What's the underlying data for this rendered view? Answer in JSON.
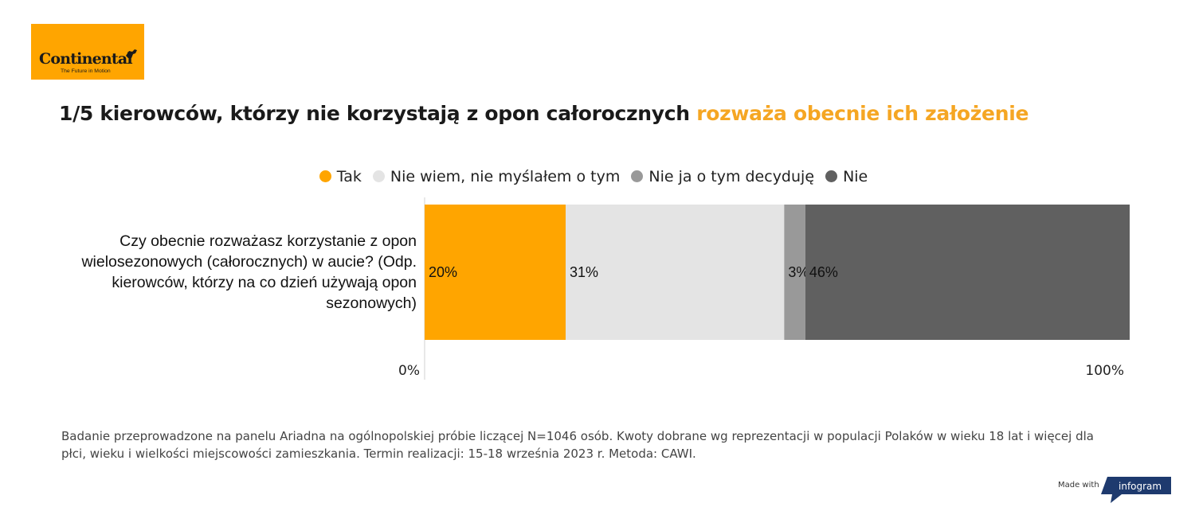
{
  "logo": {
    "brand": "Continental",
    "tagline": "The Future in Motion",
    "color": "#FFA500"
  },
  "title": {
    "main": "1/5 kierowców, którzy nie korzystają z opon całorocznych",
    "accent": "rozważa obecnie ich założenie"
  },
  "chart_data": {
    "type": "bar",
    "orientation": "horizontal-stacked-100",
    "categories": [
      "Czy obecnie rozważasz korzystanie z opon wielosezonowych (całorocznych) w aucie? (Odp. kierowców, którzy na co dzień używają opon sezonowych)"
    ],
    "series": [
      {
        "name": "Tak",
        "values": [
          20
        ],
        "label": "20%",
        "color": "#FFA500"
      },
      {
        "name": "Nie wiem, nie myślałem o tym",
        "values": [
          31
        ],
        "label": "31%",
        "color": "#E4E4E4"
      },
      {
        "name": "Nie ja o tym decyduję",
        "values": [
          3
        ],
        "label": "3%",
        "color": "#999999"
      },
      {
        "name": "Nie",
        "values": [
          46
        ],
        "label": "46%",
        "color": "#606060"
      }
    ],
    "xlim": [
      0,
      100
    ],
    "axis_labels": {
      "min": "0%",
      "max": "100%"
    },
    "legend_position": "top"
  },
  "footnote": "Badanie przeprowadzone na panelu Ariadna na ogólnopolskiej próbie liczącej N=1046 osób. Kwoty dobrane wg reprezentacji w populacji Polaków w wieku 18 lat i więcej dla płci, wieku i wielkości miejscowości zamieszkania. Termin realizacji:  15-18 września 2023 r. Metoda: CAWI.",
  "made_with": {
    "prefix": "Made with",
    "brand": "infogram"
  }
}
